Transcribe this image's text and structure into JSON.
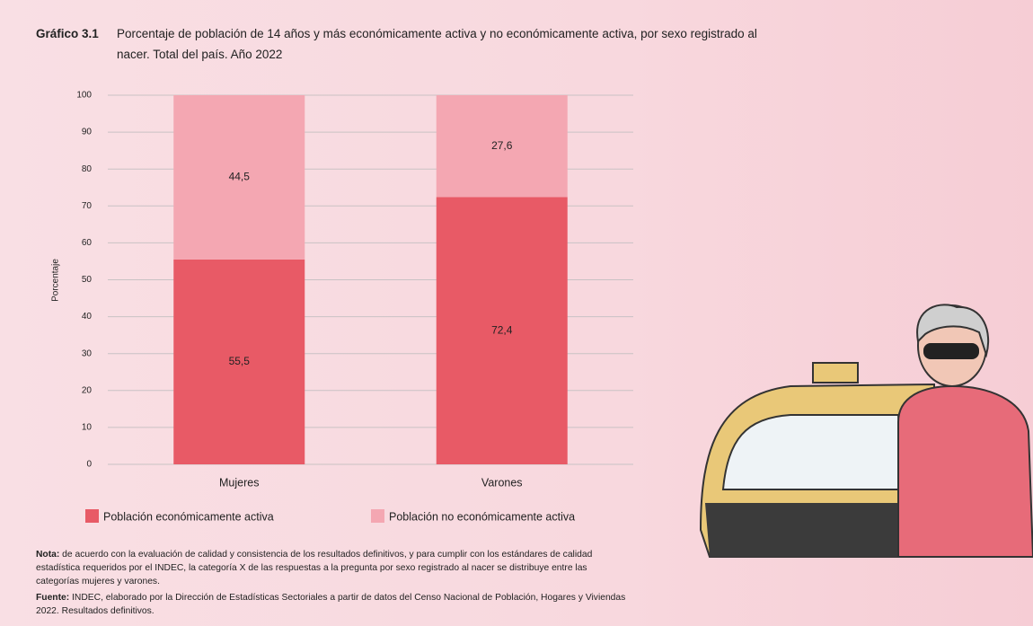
{
  "chart_data": {
    "type": "stacked_bar",
    "figure_label": "Gráfico 3.1",
    "title": "Porcentaje de población de 14 años y más económicamente activa y no económicamente activa, por sexo registrado al nacer. Total del país. Año 2022",
    "y_label": "Porcentaje",
    "categories": [
      "Mujeres",
      "Varones"
    ],
    "series": [
      {
        "name": "Población económicamente activa",
        "color": "#e85a66",
        "label_color": "#fbe3e6",
        "values": [
          55.5,
          72.4
        ],
        "value_labels": [
          "55,5",
          "72,4"
        ]
      },
      {
        "name": "Población no económicamente activa",
        "color": "#f4a7b2",
        "label_color": "#333333",
        "values": [
          44.5,
          27.6
        ],
        "value_labels": [
          "44,5",
          "27,6"
        ]
      }
    ],
    "ylim": [
      0,
      100
    ],
    "yticks": [
      0,
      10,
      20,
      30,
      40,
      50,
      60,
      70,
      80,
      90,
      100
    ],
    "grid": true
  },
  "note": {
    "label": "Nota:",
    "text": " de acuerdo con la evaluación de calidad y consistencia de los resultados definitivos, y para cumplir con los estándares de calidad estadística requeridos por el INDEC, la categoría X de las respuestas a la pregunta por sexo registrado al nacer se distribuye entre las categorías mujeres y varones."
  },
  "source": {
    "label": "Fuente:",
    "text": " INDEC, elaborado por la Dirección de Estadísticas Sectoriales a partir de datos del Censo Nacional de Población, Hogares y Viviendas 2022. Resultados definitivos."
  }
}
